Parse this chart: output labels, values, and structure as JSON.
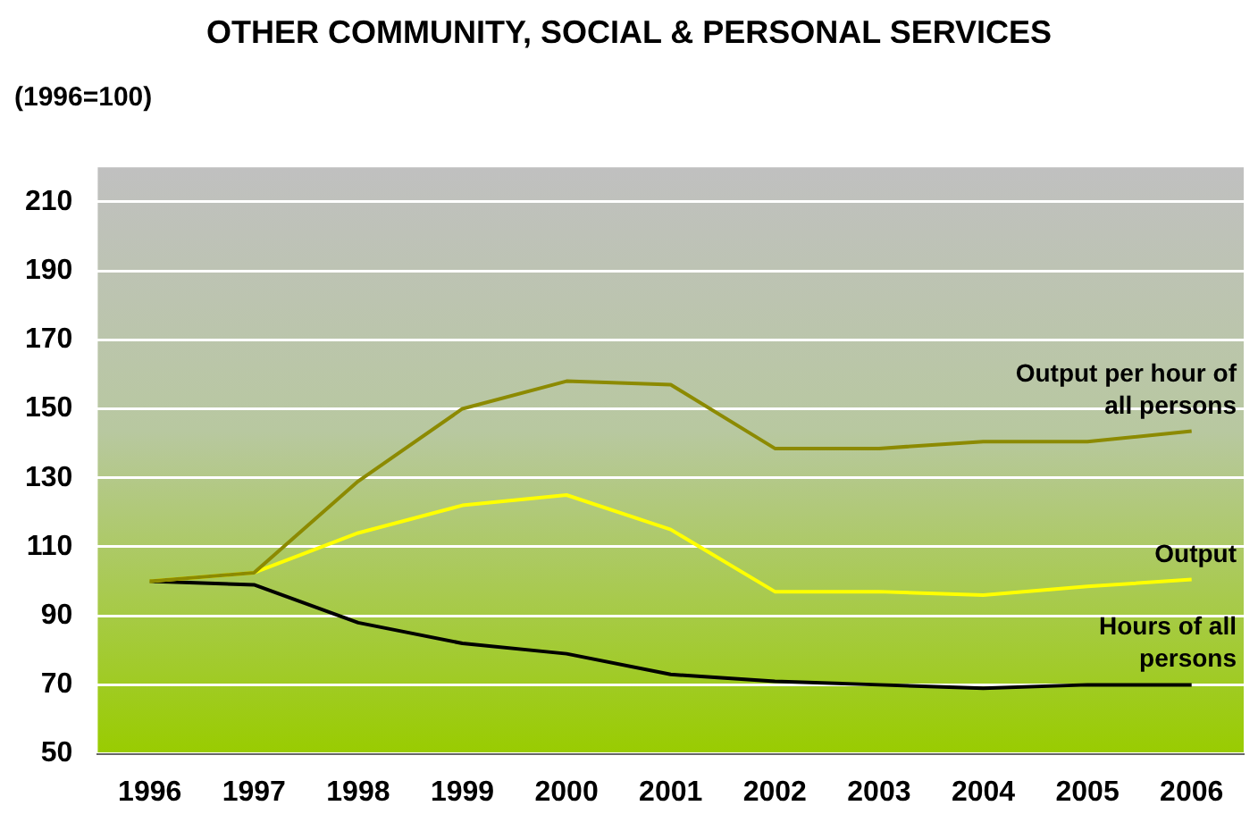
{
  "chart_data": {
    "type": "line",
    "title": "OTHER COMMUNITY, SOCIAL & PERSONAL SERVICES",
    "ylabel": "(1996=100)",
    "categories": [
      "1996",
      "1997",
      "1998",
      "1999",
      "2000",
      "2001",
      "2002",
      "2003",
      "2004",
      "2005",
      "2006"
    ],
    "series": [
      {
        "name": "Output per hour of all persons",
        "color": "#8c8a00",
        "values": [
          100,
          102.5,
          129,
          150,
          158,
          157,
          138.5,
          138.5,
          140.5,
          140.5,
          143.5
        ]
      },
      {
        "name": "Output",
        "color": "#ffff00",
        "values": [
          100,
          102.5,
          114,
          122,
          125,
          115,
          97,
          97,
          96,
          98.5,
          100.5
        ]
      },
      {
        "name": "Hours of all persons",
        "color": "#000000",
        "values": [
          100,
          99,
          88,
          82,
          79,
          73,
          71,
          70,
          69,
          70,
          70
        ]
      }
    ],
    "ylim": [
      50,
      220
    ],
    "yticks": [
      50,
      70,
      90,
      110,
      130,
      150,
      170,
      190,
      210
    ],
    "grid": "y",
    "legend": false,
    "marker": "none",
    "line_style": "solid"
  }
}
